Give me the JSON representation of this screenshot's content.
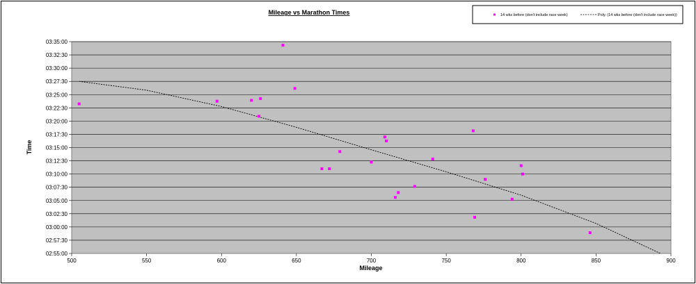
{
  "chart_data": {
    "type": "scatter",
    "title": "Mileage vs Marathon Times",
    "xlabel": "Mileage",
    "ylabel": "Time",
    "xlim": [
      500,
      900
    ],
    "ylim_seconds": [
      10500,
      12900
    ],
    "x_ticks": [
      "500",
      "550",
      "600",
      "650",
      "700",
      "750",
      "800",
      "850",
      "900"
    ],
    "y_ticks": [
      "02:55:00",
      "02:57:30",
      "03:00:00",
      "03:02:30",
      "03:05:00",
      "03:07:30",
      "03:10:00",
      "03:12:30",
      "03:15:00",
      "03:17:30",
      "03:20:00",
      "03:22:30",
      "03:25:00",
      "03:27:30",
      "03:30:00",
      "03:32:30",
      "03:35:00"
    ],
    "grid": true,
    "legend_position": "top-right",
    "colors": {
      "plot_bg": "#c0c0c0",
      "marker": "#ff00ff",
      "trend": "#000000"
    },
    "series": [
      {
        "name": "14 wks before (don't include race week)",
        "points": [
          {
            "x": 505,
            "y": "03:23:15"
          },
          {
            "x": 597,
            "y": "03:23:45"
          },
          {
            "x": 620,
            "y": "03:23:55"
          },
          {
            "x": 626,
            "y": "03:24:15"
          },
          {
            "x": 625,
            "y": "03:20:55"
          },
          {
            "x": 641,
            "y": "03:34:20"
          },
          {
            "x": 649,
            "y": "03:26:10"
          },
          {
            "x": 667,
            "y": "03:11:00"
          },
          {
            "x": 672,
            "y": "03:11:00"
          },
          {
            "x": 679,
            "y": "03:14:15"
          },
          {
            "x": 700,
            "y": "03:12:15"
          },
          {
            "x": 709,
            "y": "03:17:00"
          },
          {
            "x": 710,
            "y": "03:16:15"
          },
          {
            "x": 716,
            "y": "03:05:35"
          },
          {
            "x": 718,
            "y": "03:06:30"
          },
          {
            "x": 729,
            "y": "03:07:40"
          },
          {
            "x": 741,
            "y": "03:12:50"
          },
          {
            "x": 768,
            "y": "03:18:10"
          },
          {
            "x": 769,
            "y": "03:01:50"
          },
          {
            "x": 776,
            "y": "03:09:00"
          },
          {
            "x": 794,
            "y": "03:05:15"
          },
          {
            "x": 800,
            "y": "03:11:35"
          },
          {
            "x": 801,
            "y": "03:10:00"
          },
          {
            "x": 846,
            "y": "02:58:55"
          }
        ]
      },
      {
        "name": "Poly. (14 wks before (don't include race week))",
        "type": "trendline",
        "points": [
          {
            "x": 505,
            "y": "03:27:30"
          },
          {
            "x": 550,
            "y": "03:25:50"
          },
          {
            "x": 600,
            "y": "03:22:45"
          },
          {
            "x": 650,
            "y": "03:18:50"
          },
          {
            "x": 700,
            "y": "03:14:35"
          },
          {
            "x": 750,
            "y": "03:10:25"
          },
          {
            "x": 800,
            "y": "03:06:00"
          },
          {
            "x": 850,
            "y": "03:00:40"
          },
          {
            "x": 893,
            "y": "02:55:00"
          }
        ]
      }
    ]
  }
}
